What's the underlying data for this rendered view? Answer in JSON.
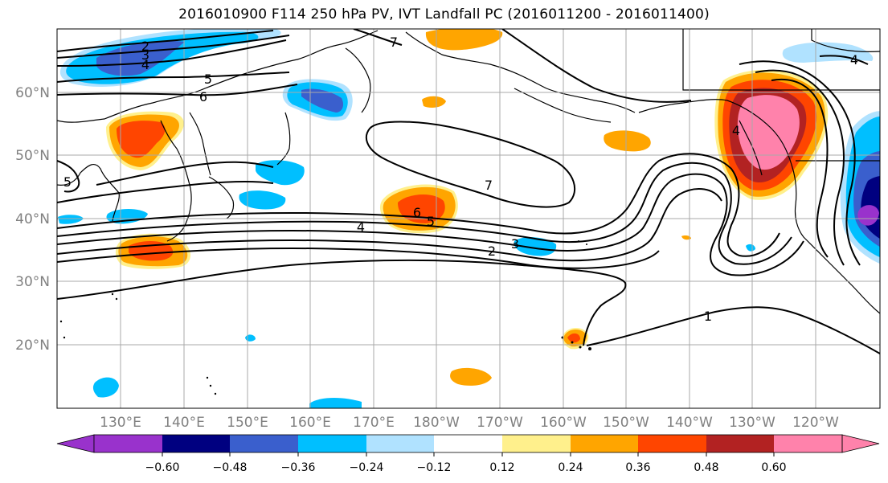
{
  "title": "2016010900 F114 250 hPa PV, IVT Landfall PC (2016011200 - 2016011400)",
  "map": {
    "lat_labels": [
      "60°N",
      "50°N",
      "40°N",
      "30°N",
      "20°N"
    ],
    "lon_labels": [
      "130°E",
      "140°E",
      "150°E",
      "160°E",
      "170°E",
      "180°W",
      "170°W",
      "160°W",
      "150°W",
      "140°W",
      "130°W",
      "120°W"
    ],
    "pv_contour_labels": [
      "2",
      "3",
      "4",
      "5",
      "6",
      "7",
      "6",
      "5",
      "4",
      "3",
      "2",
      "7",
      "1",
      "4",
      "4",
      "5"
    ]
  },
  "colorbar": {
    "ticks": [
      "−0.60",
      "−0.48",
      "−0.36",
      "−0.24",
      "−0.12",
      "0.12",
      "0.24",
      "0.36",
      "0.48",
      "0.60"
    ],
    "colors": [
      "#9932cc",
      "#000080",
      "#3a5fcd",
      "#00bfff",
      "#b0e2ff",
      "#ffffff",
      "#fff08c",
      "#ffa500",
      "#ff4500",
      "#b22222",
      "#ff82ab",
      "#ff82ab"
    ],
    "extend": "both"
  },
  "colors": {
    "positive_low": "#fff08c",
    "positive_mid": "#ffa500",
    "positive_high": "#ff4500",
    "positive_higher": "#b22222",
    "positive_max": "#ff82ab",
    "negative_low": "#b0e2ff",
    "negative_mid": "#00bfff",
    "negative_high": "#3a5fcd",
    "negative_higher": "#000080",
    "negative_max": "#9932cc",
    "grid": "#a9a9a9",
    "axis_label": "#808080"
  }
}
